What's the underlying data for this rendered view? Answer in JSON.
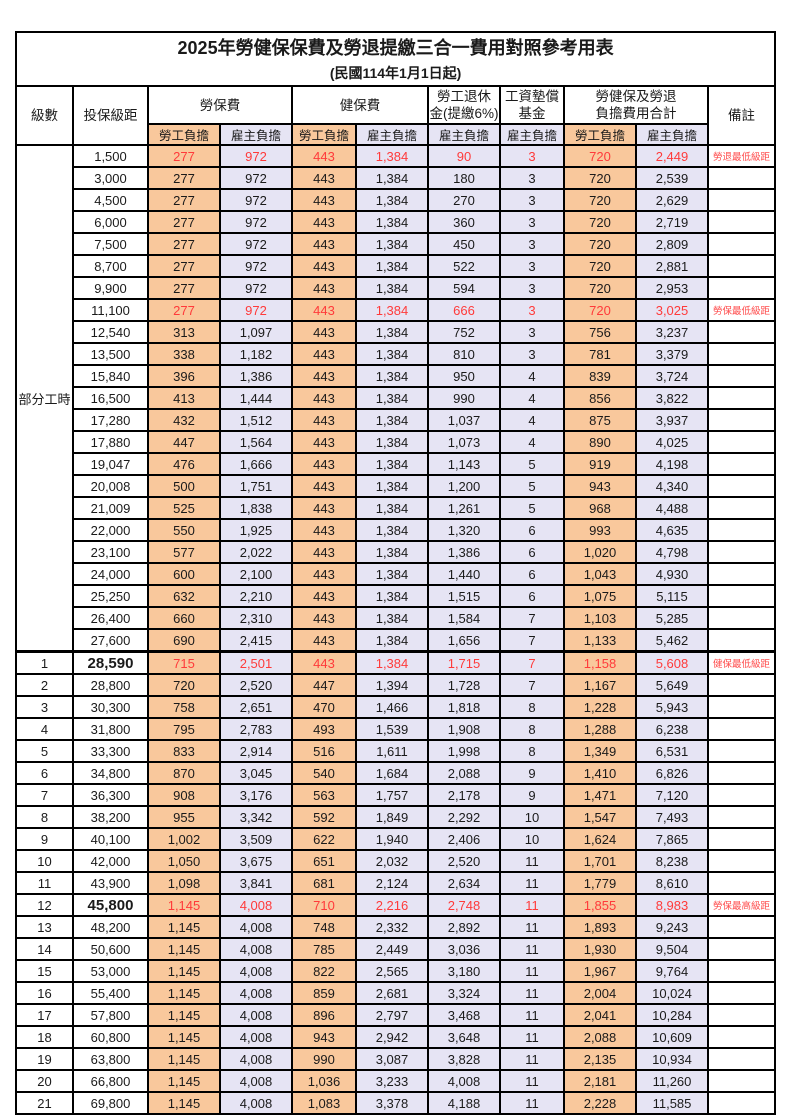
{
  "title": "2025年勞健保保費及勞退提繳三合一費用對照參考用表",
  "subtitle": "(民國114年1月1日起)",
  "colors": {
    "worker_bg": "#F9C89C",
    "employer_bg": "#E6E4F4",
    "highlight_red": "#FF3A3A",
    "note_red": "#FF4A4A",
    "border": "#000000"
  },
  "header": {
    "level": "級數",
    "bracket": "投保級距",
    "labor_ins": "勞保費",
    "health_ins": "健保費",
    "pension_line1": "勞工退休",
    "pension_line2": "金(提繳6%)",
    "wage_fund_line1": "工資墊償",
    "wage_fund_line2": "基金",
    "total_line1": "勞健保及勞退",
    "total_line2": "負擔費用合計",
    "note": "備註",
    "worker": "勞工負擔",
    "employer": "雇主負擔"
  },
  "part_time_label": "部分工時",
  "rows": [
    {
      "level": "",
      "bracket": "1,500",
      "values": [
        "277",
        "972",
        "443",
        "1,384",
        "90",
        "3",
        "720",
        "2,449"
      ],
      "note": "勞退最低級距",
      "red": true
    },
    {
      "level": "",
      "bracket": "3,000",
      "values": [
        "277",
        "972",
        "443",
        "1,384",
        "180",
        "3",
        "720",
        "2,539"
      ],
      "note": ""
    },
    {
      "level": "",
      "bracket": "4,500",
      "values": [
        "277",
        "972",
        "443",
        "1,384",
        "270",
        "3",
        "720",
        "2,629"
      ],
      "note": ""
    },
    {
      "level": "",
      "bracket": "6,000",
      "values": [
        "277",
        "972",
        "443",
        "1,384",
        "360",
        "3",
        "720",
        "2,719"
      ],
      "note": ""
    },
    {
      "level": "",
      "bracket": "7,500",
      "values": [
        "277",
        "972",
        "443",
        "1,384",
        "450",
        "3",
        "720",
        "2,809"
      ],
      "note": ""
    },
    {
      "level": "",
      "bracket": "8,700",
      "values": [
        "277",
        "972",
        "443",
        "1,384",
        "522",
        "3",
        "720",
        "2,881"
      ],
      "note": ""
    },
    {
      "level": "",
      "bracket": "9,900",
      "values": [
        "277",
        "972",
        "443",
        "1,384",
        "594",
        "3",
        "720",
        "2,953"
      ],
      "note": ""
    },
    {
      "level": "",
      "bracket": "11,100",
      "values": [
        "277",
        "972",
        "443",
        "1,384",
        "666",
        "3",
        "720",
        "3,025"
      ],
      "note": "勞保最低級距",
      "red": true
    },
    {
      "level": "",
      "bracket": "12,540",
      "values": [
        "313",
        "1,097",
        "443",
        "1,384",
        "752",
        "3",
        "756",
        "3,237"
      ],
      "note": ""
    },
    {
      "level": "",
      "bracket": "13,500",
      "values": [
        "338",
        "1,182",
        "443",
        "1,384",
        "810",
        "3",
        "781",
        "3,379"
      ],
      "note": ""
    },
    {
      "level": "",
      "bracket": "15,840",
      "values": [
        "396",
        "1,386",
        "443",
        "1,384",
        "950",
        "4",
        "839",
        "3,724"
      ],
      "note": ""
    },
    {
      "level": "",
      "bracket": "16,500",
      "values": [
        "413",
        "1,444",
        "443",
        "1,384",
        "990",
        "4",
        "856",
        "3,822"
      ],
      "note": ""
    },
    {
      "level": "",
      "bracket": "17,280",
      "values": [
        "432",
        "1,512",
        "443",
        "1,384",
        "1,037",
        "4",
        "875",
        "3,937"
      ],
      "note": ""
    },
    {
      "level": "",
      "bracket": "17,880",
      "values": [
        "447",
        "1,564",
        "443",
        "1,384",
        "1,073",
        "4",
        "890",
        "4,025"
      ],
      "note": ""
    },
    {
      "level": "",
      "bracket": "19,047",
      "values": [
        "476",
        "1,666",
        "443",
        "1,384",
        "1,143",
        "5",
        "919",
        "4,198"
      ],
      "note": ""
    },
    {
      "level": "",
      "bracket": "20,008",
      "values": [
        "500",
        "1,751",
        "443",
        "1,384",
        "1,200",
        "5",
        "943",
        "4,340"
      ],
      "note": ""
    },
    {
      "level": "",
      "bracket": "21,009",
      "values": [
        "525",
        "1,838",
        "443",
        "1,384",
        "1,261",
        "5",
        "968",
        "4,488"
      ],
      "note": ""
    },
    {
      "level": "",
      "bracket": "22,000",
      "values": [
        "550",
        "1,925",
        "443",
        "1,384",
        "1,320",
        "6",
        "993",
        "4,635"
      ],
      "note": ""
    },
    {
      "level": "",
      "bracket": "23,100",
      "values": [
        "577",
        "2,022",
        "443",
        "1,384",
        "1,386",
        "6",
        "1,020",
        "4,798"
      ],
      "note": ""
    },
    {
      "level": "",
      "bracket": "24,000",
      "values": [
        "600",
        "2,100",
        "443",
        "1,384",
        "1,440",
        "6",
        "1,043",
        "4,930"
      ],
      "note": ""
    },
    {
      "level": "",
      "bracket": "25,250",
      "values": [
        "632",
        "2,210",
        "443",
        "1,384",
        "1,515",
        "6",
        "1,075",
        "5,115"
      ],
      "note": ""
    },
    {
      "level": "",
      "bracket": "26,400",
      "values": [
        "660",
        "2,310",
        "443",
        "1,384",
        "1,584",
        "7",
        "1,103",
        "5,285"
      ],
      "note": ""
    },
    {
      "level": "",
      "bracket": "27,600",
      "values": [
        "690",
        "2,415",
        "443",
        "1,384",
        "1,656",
        "7",
        "1,133",
        "5,462"
      ],
      "note": ""
    },
    {
      "level": "1",
      "bracket": "28,590",
      "values": [
        "715",
        "2,501",
        "443",
        "1,384",
        "1,715",
        "7",
        "1,158",
        "5,608"
      ],
      "note": "健保最低級距",
      "red": true,
      "big": true,
      "section": true
    },
    {
      "level": "2",
      "bracket": "28,800",
      "values": [
        "720",
        "2,520",
        "447",
        "1,394",
        "1,728",
        "7",
        "1,167",
        "5,649"
      ],
      "note": ""
    },
    {
      "level": "3",
      "bracket": "30,300",
      "values": [
        "758",
        "2,651",
        "470",
        "1,466",
        "1,818",
        "8",
        "1,228",
        "5,943"
      ],
      "note": ""
    },
    {
      "level": "4",
      "bracket": "31,800",
      "values": [
        "795",
        "2,783",
        "493",
        "1,539",
        "1,908",
        "8",
        "1,288",
        "6,238"
      ],
      "note": ""
    },
    {
      "level": "5",
      "bracket": "33,300",
      "values": [
        "833",
        "2,914",
        "516",
        "1,611",
        "1,998",
        "8",
        "1,349",
        "6,531"
      ],
      "note": ""
    },
    {
      "level": "6",
      "bracket": "34,800",
      "values": [
        "870",
        "3,045",
        "540",
        "1,684",
        "2,088",
        "9",
        "1,410",
        "6,826"
      ],
      "note": ""
    },
    {
      "level": "7",
      "bracket": "36,300",
      "values": [
        "908",
        "3,176",
        "563",
        "1,757",
        "2,178",
        "9",
        "1,471",
        "7,120"
      ],
      "note": ""
    },
    {
      "level": "8",
      "bracket": "38,200",
      "values": [
        "955",
        "3,342",
        "592",
        "1,849",
        "2,292",
        "10",
        "1,547",
        "7,493"
      ],
      "note": ""
    },
    {
      "level": "9",
      "bracket": "40,100",
      "values": [
        "1,002",
        "3,509",
        "622",
        "1,940",
        "2,406",
        "10",
        "1,624",
        "7,865"
      ],
      "note": ""
    },
    {
      "level": "10",
      "bracket": "42,000",
      "values": [
        "1,050",
        "3,675",
        "651",
        "2,032",
        "2,520",
        "11",
        "1,701",
        "8,238"
      ],
      "note": ""
    },
    {
      "level": "11",
      "bracket": "43,900",
      "values": [
        "1,098",
        "3,841",
        "681",
        "2,124",
        "2,634",
        "11",
        "1,779",
        "8,610"
      ],
      "note": ""
    },
    {
      "level": "12",
      "bracket": "45,800",
      "values": [
        "1,145",
        "4,008",
        "710",
        "2,216",
        "2,748",
        "11",
        "1,855",
        "8,983"
      ],
      "note": "勞保最高級距",
      "red": true,
      "big": true
    },
    {
      "level": "13",
      "bracket": "48,200",
      "values": [
        "1,145",
        "4,008",
        "748",
        "2,332",
        "2,892",
        "11",
        "1,893",
        "9,243"
      ],
      "note": ""
    },
    {
      "level": "14",
      "bracket": "50,600",
      "values": [
        "1,145",
        "4,008",
        "785",
        "2,449",
        "3,036",
        "11",
        "1,930",
        "9,504"
      ],
      "note": ""
    },
    {
      "level": "15",
      "bracket": "53,000",
      "values": [
        "1,145",
        "4,008",
        "822",
        "2,565",
        "3,180",
        "11",
        "1,967",
        "9,764"
      ],
      "note": ""
    },
    {
      "level": "16",
      "bracket": "55,400",
      "values": [
        "1,145",
        "4,008",
        "859",
        "2,681",
        "3,324",
        "11",
        "2,004",
        "10,024"
      ],
      "note": ""
    },
    {
      "level": "17",
      "bracket": "57,800",
      "values": [
        "1,145",
        "4,008",
        "896",
        "2,797",
        "3,468",
        "11",
        "2,041",
        "10,284"
      ],
      "note": ""
    },
    {
      "level": "18",
      "bracket": "60,800",
      "values": [
        "1,145",
        "4,008",
        "943",
        "2,942",
        "3,648",
        "11",
        "2,088",
        "10,609"
      ],
      "note": ""
    },
    {
      "level": "19",
      "bracket": "63,800",
      "values": [
        "1,145",
        "4,008",
        "990",
        "3,087",
        "3,828",
        "11",
        "2,135",
        "10,934"
      ],
      "note": ""
    },
    {
      "level": "20",
      "bracket": "66,800",
      "values": [
        "1,145",
        "4,008",
        "1,036",
        "3,233",
        "4,008",
        "11",
        "2,181",
        "11,260"
      ],
      "note": ""
    },
    {
      "level": "21",
      "bracket": "69,800",
      "values": [
        "1,145",
        "4,008",
        "1,083",
        "3,378",
        "4,188",
        "11",
        "2,228",
        "11,585"
      ],
      "note": ""
    }
  ]
}
